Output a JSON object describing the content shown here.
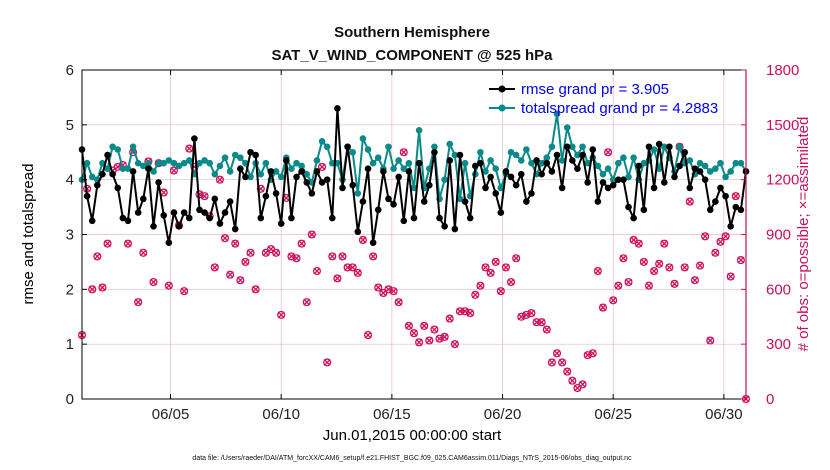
{
  "chart_data": {
    "type": "line",
    "title": "Southern Hemisphere",
    "subtitle": "SAT_V_WIND_COMPONENT @ 525 hPa",
    "xlabel": "Jun.01,2015 00:00:00 start",
    "ylabel": "rmse and totalspread",
    "ylabel_right": "# of obs: o=possible; ×=assimilated",
    "footnote": "data file: /Users/raeder/DAI/ATM_forcXX/CAM6_setup/f.e21.FHIST_BGC.f09_025.CAM6assim.011/Diags_NTrS_2015-06/obs_diag_output.nc",
    "xlim": [
      1.0,
      31.0
    ],
    "ylim": [
      0,
      6
    ],
    "ylim_right": [
      0,
      1800
    ],
    "x_ticks": [
      5,
      10,
      15,
      20,
      25,
      30
    ],
    "x_tick_labels": [
      "06/05",
      "06/10",
      "06/15",
      "06/20",
      "06/25",
      "06/30"
    ],
    "y_ticks": [
      0,
      1,
      2,
      3,
      4,
      5,
      6
    ],
    "y_tick_labels": [
      "0",
      "1",
      "2",
      "3",
      "4",
      "5",
      "6"
    ],
    "y_ticks_right": [
      0,
      300,
      600,
      900,
      1200,
      1500,
      1800
    ],
    "y_tick_labels_right": [
      "0",
      "300",
      "600",
      "900",
      "1200",
      "1500",
      "1800"
    ],
    "grid": true,
    "legend_position": "top-right",
    "colors": {
      "rmse": "#000000",
      "totalspread": "#0b8a8a",
      "obs": "#d0105a",
      "legend_text": "#0000ee",
      "right_axis": "#c8105a",
      "grid": "#e8b8c8"
    },
    "series": [
      {
        "name": "rmse",
        "label": "rmse grand pr = 3.905",
        "values": [
          4.55,
          3.7,
          3.25,
          3.9,
          4.1,
          4.45,
          4.1,
          3.85,
          3.3,
          3.25,
          4.15,
          3.4,
          3.65,
          4.2,
          3.15,
          3.95,
          3.35,
          2.85,
          3.4,
          3.15,
          3.4,
          3.3,
          4.75,
          3.45,
          3.4,
          3.3,
          3.65,
          3.2,
          3.4,
          3.6,
          3.1,
          4.2,
          4.05,
          4.5,
          4.45,
          3.3,
          3.7,
          4.15,
          3.75,
          3.2,
          4.35,
          3.3,
          4.05,
          4.15,
          3.95,
          3.75,
          4.15,
          3.95,
          4.0,
          3.3,
          5.3,
          3.85,
          4.6,
          3.9,
          3.05,
          3.6,
          4.2,
          2.85,
          3.45,
          4.15,
          3.65,
          3.55,
          4.05,
          3.25,
          4.15,
          3.3,
          4.3,
          3.6,
          3.9,
          4.5,
          3.3,
          3.15,
          4.35,
          3.1,
          4.45,
          3.6,
          3.3,
          4.25,
          4.3,
          3.85,
          4.05,
          3.75,
          3.4,
          4.15,
          4.05,
          3.9,
          4.1,
          3.6,
          3.75,
          4.35,
          4.1,
          4.3,
          4.15,
          4.45,
          3.85,
          4.6,
          4.35,
          4.2,
          4.45,
          3.95,
          4.55,
          3.6,
          3.95,
          3.85,
          3.9,
          4.0,
          4.0,
          3.5,
          3.3,
          4.25,
          3.45,
          4.6,
          3.85,
          4.65,
          3.95,
          4.6,
          4.05,
          4.25,
          4.5,
          3.85,
          4.2,
          4.15,
          4.0,
          3.45,
          3.6,
          3.85,
          3.7,
          3.15,
          3.5,
          3.45,
          4.15
        ]
      },
      {
        "name": "totalspread",
        "label": "totalspread grand pr = 4.2883",
        "values": [
          4.0,
          4.3,
          4.05,
          4.0,
          4.3,
          4.2,
          4.6,
          4.55,
          4.2,
          4.2,
          4.6,
          4.3,
          4.25,
          4.3,
          4.15,
          4.3,
          4.3,
          4.35,
          4.3,
          4.25,
          4.3,
          4.35,
          4.1,
          4.3,
          4.35,
          4.3,
          4.1,
          4.25,
          4.4,
          4.15,
          4.45,
          4.4,
          4.3,
          4.05,
          4.3,
          4.1,
          4.3,
          4.0,
          4.15,
          4.05,
          4.4,
          4.2,
          4.3,
          4.25,
          4.1,
          3.95,
          4.35,
          4.7,
          4.6,
          4.3,
          4.3,
          4.0,
          4.6,
          4.5,
          3.75,
          4.75,
          4.55,
          4.3,
          4.4,
          4.2,
          4.6,
          4.2,
          4.35,
          4.2,
          4.3,
          3.85,
          4.9,
          3.85,
          4.2,
          4.6,
          3.65,
          4.0,
          4.65,
          4.45,
          3.65,
          4.3,
          3.7,
          4.1,
          4.5,
          4.15,
          4.35,
          4.2,
          3.85,
          4.1,
          4.5,
          4.45,
          4.35,
          4.55,
          4.3,
          4.1,
          4.3,
          4.4,
          4.6,
          5.2,
          4.35,
          4.95,
          4.6,
          4.45,
          4.6,
          4.3,
          4.4,
          4.25,
          4.1,
          4.2,
          4.0,
          4.3,
          4.4,
          4.05,
          4.4,
          4.0,
          4.3,
          4.35,
          4.55,
          4.2,
          4.6,
          4.4,
          4.15,
          4.6,
          4.3,
          4.35,
          4.1,
          4.3,
          4.25,
          4.15,
          4.2,
          4.3,
          4.05,
          4.15,
          4.3,
          4.3,
          4.15
        ]
      },
      {
        "name": "obs",
        "label": "# of obs possible / assimilated",
        "values": [
          350,
          1150,
          600,
          780,
          610,
          850,
          1250,
          1270,
          1280,
          850,
          1350,
          530,
          800,
          1300,
          640,
          1290,
          1130,
          620,
          1250,
          950,
          590,
          1370,
          1270,
          1120,
          1110,
          1000,
          720,
          1200,
          880,
          680,
          850,
          650,
          750,
          800,
          600,
          1150,
          800,
          820,
          800,
          460,
          1100,
          780,
          770,
          850,
          530,
          900,
          700,
          1270,
          200,
          780,
          660,
          780,
          720,
          720,
          690,
          870,
          350,
          780,
          610,
          580,
          600,
          590,
          530,
          1350,
          400,
          360,
          310,
          400,
          320,
          380,
          330,
          340,
          440,
          300,
          480,
          480,
          470,
          570,
          620,
          720,
          690,
          750,
          590,
          720,
          640,
          770,
          450,
          460,
          470,
          420,
          420,
          380,
          200,
          250,
          200,
          150,
          100,
          60,
          80,
          240,
          250,
          700,
          500,
          1350,
          540,
          620,
          770,
          640,
          870,
          850,
          750,
          620,
          700,
          740,
          850,
          720,
          630,
          1380,
          720,
          1080,
          650,
          730,
          890,
          320,
          800,
          860,
          890,
          670,
          1110,
          760,
          0
        ]
      }
    ]
  }
}
